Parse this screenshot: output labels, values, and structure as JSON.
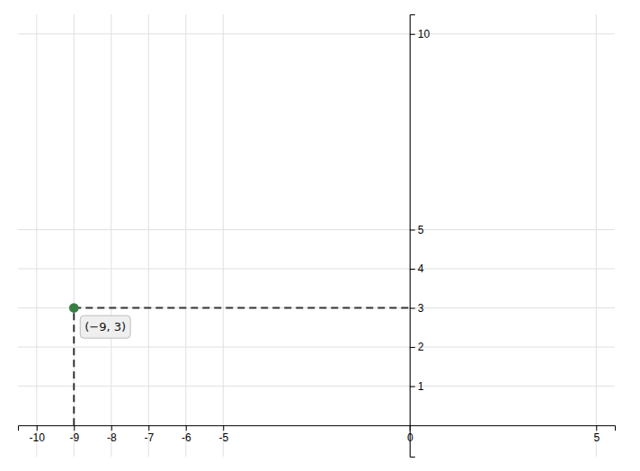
{
  "chart_data": {
    "type": "scatter",
    "x": [
      -9
    ],
    "values": [
      3
    ],
    "color": "#3a7d44",
    "marker": "circle",
    "xlim": [
      -10.5,
      5.5
    ],
    "ylim": [
      -0.8,
      10.5
    ],
    "xticks": [
      -10,
      -9,
      -8,
      -7,
      -6,
      -5,
      0,
      5
    ],
    "yticks": [
      1,
      2,
      3,
      4,
      5,
      10
    ],
    "grid": true,
    "annotations": [
      {
        "text": "(−9, 3)",
        "x": -9,
        "y": 3
      }
    ]
  }
}
